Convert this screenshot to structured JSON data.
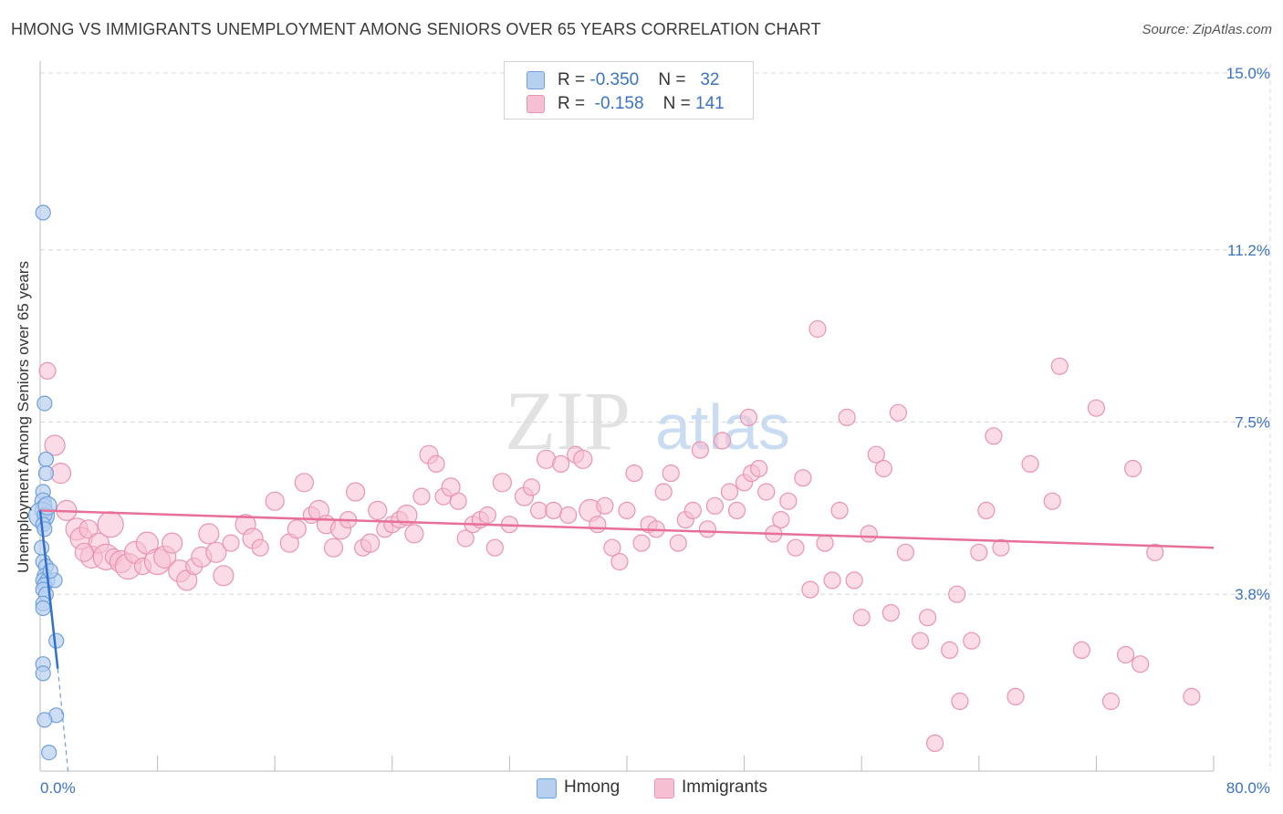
{
  "title": "HMONG VS IMMIGRANTS UNEMPLOYMENT AMONG SENIORS OVER 65 YEARS CORRELATION CHART",
  "source": "Source: ZipAtlas.com",
  "watermark": {
    "zip": "ZIP",
    "atlas": "atlas"
  },
  "legend_top": {
    "hmong": {
      "r_label": "R = ",
      "r_value": "-0.350",
      "n_label": "N = ",
      "n_value": "32"
    },
    "immigrants": {
      "r_label": "R = ",
      "r_value": "-0.158",
      "n_label": "N = ",
      "n_value": "141"
    }
  },
  "legend_bottom": {
    "hmong": "Hmong",
    "immigrants": "Immigrants"
  },
  "colors": {
    "hmong_fill": "#b8d0f0",
    "hmong_stroke": "#6f9fdc",
    "hmong_line": "#2f6fd0",
    "immigrants_fill": "#f7c0d2",
    "immigrants_stroke": "#ea93b2",
    "immigrants_line": "#e86f9a",
    "axis_label": "#3b73c4",
    "grid": "#d8d8d8"
  },
  "chart_data": {
    "type": "scatter",
    "title": "HMONG VS IMMIGRANTS UNEMPLOYMENT AMONG SENIORS OVER 65 YEARS CORRELATION CHART",
    "xlabel": "",
    "ylabel": "Unemployment Among Seniors over 65 years",
    "xlim": [
      0,
      80
    ],
    "ylim": [
      0,
      15
    ],
    "x_tick_labels": [
      "0.0%",
      "80.0%"
    ],
    "y_ticks": [
      3.8,
      7.5,
      11.2,
      15.0
    ],
    "y_tick_labels": [
      "3.8%",
      "7.5%",
      "11.2%",
      "15.0%"
    ],
    "series": [
      {
        "name": "Hmong",
        "R": -0.35,
        "N": 32,
        "trend": {
          "x0": 0.0,
          "y0": 5.6,
          "x1": 1.2,
          "y1": 2.2
        },
        "trend_dashed": {
          "x0": 1.2,
          "y0": 2.2,
          "x1": 1.9,
          "y1": 0.0
        },
        "points": [
          [
            0.2,
            12.0,
            8
          ],
          [
            0.3,
            7.9,
            8
          ],
          [
            0.4,
            6.7,
            8
          ],
          [
            0.4,
            6.4,
            8
          ],
          [
            0.2,
            6.0,
            8
          ],
          [
            0.2,
            5.8,
            9
          ],
          [
            0.3,
            5.7,
            8
          ],
          [
            0.2,
            5.6,
            9
          ],
          [
            0.1,
            5.5,
            14
          ],
          [
            0.3,
            5.5,
            8
          ],
          [
            0.2,
            5.3,
            8
          ],
          [
            0.3,
            5.2,
            8
          ],
          [
            0.2,
            4.5,
            8
          ],
          [
            0.4,
            4.4,
            8
          ],
          [
            0.3,
            4.2,
            8
          ],
          [
            0.2,
            4.1,
            8
          ],
          [
            0.5,
            4.1,
            8
          ],
          [
            0.3,
            4.0,
            8
          ],
          [
            0.2,
            3.9,
            8
          ],
          [
            0.4,
            3.8,
            8
          ],
          [
            1.0,
            4.1,
            8
          ],
          [
            0.2,
            3.6,
            8
          ],
          [
            0.2,
            3.5,
            8
          ],
          [
            1.1,
            2.8,
            8
          ],
          [
            0.2,
            2.3,
            8
          ],
          [
            0.2,
            2.1,
            8
          ],
          [
            1.1,
            1.2,
            8
          ],
          [
            0.3,
            1.1,
            8
          ],
          [
            0.6,
            0.4,
            8
          ],
          [
            0.5,
            5.7,
            10
          ],
          [
            0.7,
            4.3,
            8
          ],
          [
            0.1,
            4.8,
            8
          ]
        ]
      },
      {
        "name": "Immigrants",
        "R": -0.158,
        "N": 141,
        "trend": {
          "x0": 0.0,
          "y0": 5.6,
          "x1": 80.0,
          "y1": 4.8
        },
        "points": [
          [
            0.5,
            8.6,
            9
          ],
          [
            1.0,
            7.0,
            11
          ],
          [
            1.4,
            6.4,
            11
          ],
          [
            1.8,
            5.6,
            11
          ],
          [
            2.5,
            5.2,
            12
          ],
          [
            2.8,
            5.0,
            12
          ],
          [
            3.3,
            5.2,
            10
          ],
          [
            3.5,
            4.6,
            12
          ],
          [
            4.0,
            4.9,
            11
          ],
          [
            4.5,
            4.6,
            14
          ],
          [
            4.8,
            5.3,
            14
          ],
          [
            5.0,
            4.6,
            9
          ],
          [
            5.5,
            4.5,
            12
          ],
          [
            6.0,
            4.4,
            14
          ],
          [
            6.5,
            4.7,
            12
          ],
          [
            7.0,
            4.4,
            9
          ],
          [
            7.3,
            4.9,
            12
          ],
          [
            8.0,
            4.5,
            14
          ],
          [
            8.5,
            4.6,
            12
          ],
          [
            9.0,
            4.9,
            11
          ],
          [
            9.5,
            4.3,
            12
          ],
          [
            10.0,
            4.1,
            11
          ],
          [
            10.5,
            4.4,
            9
          ],
          [
            11.0,
            4.6,
            11
          ],
          [
            11.5,
            5.1,
            11
          ],
          [
            12.0,
            4.7,
            11
          ],
          [
            12.5,
            4.2,
            11
          ],
          [
            13.0,
            4.9,
            9
          ],
          [
            14.0,
            5.3,
            11
          ],
          [
            14.5,
            5.0,
            11
          ],
          [
            15.0,
            4.8,
            9
          ],
          [
            16.0,
            5.8,
            10
          ],
          [
            17.0,
            4.9,
            10
          ],
          [
            17.5,
            5.2,
            10
          ],
          [
            18.0,
            6.2,
            10
          ],
          [
            18.5,
            5.5,
            9
          ],
          [
            19.0,
            5.6,
            11
          ],
          [
            19.5,
            5.3,
            10
          ],
          [
            20.0,
            4.8,
            10
          ],
          [
            20.5,
            5.2,
            11
          ],
          [
            21.0,
            5.4,
            9
          ],
          [
            21.5,
            6.0,
            10
          ],
          [
            22.0,
            4.8,
            9
          ],
          [
            22.5,
            4.9,
            10
          ],
          [
            23.0,
            5.6,
            10
          ],
          [
            23.5,
            5.2,
            9
          ],
          [
            24.0,
            5.3,
            9
          ],
          [
            24.5,
            5.4,
            9
          ],
          [
            25.0,
            5.5,
            11
          ],
          [
            25.5,
            5.1,
            10
          ],
          [
            26.0,
            5.9,
            9
          ],
          [
            26.5,
            6.8,
            10
          ],
          [
            27.0,
            6.6,
            9
          ],
          [
            27.5,
            5.9,
            9
          ],
          [
            28.0,
            6.1,
            10
          ],
          [
            28.5,
            5.8,
            9
          ],
          [
            29.0,
            5.0,
            9
          ],
          [
            29.5,
            5.3,
            9
          ],
          [
            30.0,
            5.4,
            9
          ],
          [
            30.5,
            5.5,
            9
          ],
          [
            31.0,
            4.8,
            9
          ],
          [
            31.5,
            6.2,
            10
          ],
          [
            32.0,
            5.3,
            9
          ],
          [
            33.0,
            5.9,
            10
          ],
          [
            33.5,
            6.1,
            9
          ],
          [
            34.0,
            5.6,
            9
          ],
          [
            34.5,
            6.7,
            10
          ],
          [
            35.0,
            5.6,
            9
          ],
          [
            35.5,
            6.6,
            9
          ],
          [
            36.0,
            5.5,
            9
          ],
          [
            36.5,
            6.8,
            9
          ],
          [
            37.0,
            6.7,
            10
          ],
          [
            37.5,
            5.6,
            12
          ],
          [
            38.0,
            5.3,
            9
          ],
          [
            38.5,
            5.7,
            9
          ],
          [
            39.0,
            4.8,
            9
          ],
          [
            39.5,
            4.5,
            9
          ],
          [
            40.0,
            5.6,
            9
          ],
          [
            40.5,
            6.4,
            9
          ],
          [
            41.0,
            4.9,
            9
          ],
          [
            41.5,
            5.3,
            9
          ],
          [
            42.0,
            5.2,
            9
          ],
          [
            42.5,
            6.0,
            9
          ],
          [
            43.0,
            6.4,
            9
          ],
          [
            43.5,
            4.9,
            9
          ],
          [
            44.0,
            5.4,
            9
          ],
          [
            44.5,
            5.6,
            9
          ],
          [
            45.0,
            6.9,
            9
          ],
          [
            45.5,
            5.2,
            9
          ],
          [
            46.0,
            5.7,
            9
          ],
          [
            46.5,
            7.1,
            9
          ],
          [
            47.0,
            6.0,
            9
          ],
          [
            47.5,
            5.6,
            9
          ],
          [
            48.0,
            6.2,
            9
          ],
          [
            48.5,
            6.4,
            9
          ],
          [
            48.3,
            7.6,
            9
          ],
          [
            49.0,
            6.5,
            9
          ],
          [
            49.5,
            6.0,
            9
          ],
          [
            50.0,
            5.1,
            9
          ],
          [
            50.5,
            5.4,
            9
          ],
          [
            51.0,
            5.8,
            9
          ],
          [
            51.5,
            4.8,
            9
          ],
          [
            52.0,
            6.3,
            9
          ],
          [
            52.5,
            3.9,
            9
          ],
          [
            53.0,
            9.5,
            9
          ],
          [
            53.5,
            4.9,
            9
          ],
          [
            54.0,
            4.1,
            9
          ],
          [
            54.5,
            5.6,
            9
          ],
          [
            55.0,
            7.6,
            9
          ],
          [
            55.5,
            4.1,
            9
          ],
          [
            56.0,
            3.3,
            9
          ],
          [
            56.5,
            5.1,
            9
          ],
          [
            57.0,
            6.8,
            9
          ],
          [
            57.5,
            6.5,
            9
          ],
          [
            58.0,
            3.4,
            9
          ],
          [
            58.5,
            7.7,
            9
          ],
          [
            59.0,
            4.7,
            9
          ],
          [
            60.0,
            2.8,
            9
          ],
          [
            60.5,
            3.3,
            9
          ],
          [
            61.0,
            0.6,
            9
          ],
          [
            62.0,
            2.6,
            9
          ],
          [
            62.5,
            3.8,
            9
          ],
          [
            62.7,
            1.5,
            9
          ],
          [
            63.5,
            2.8,
            9
          ],
          [
            64.0,
            4.7,
            9
          ],
          [
            64.5,
            5.6,
            9
          ],
          [
            65.0,
            7.2,
            9
          ],
          [
            65.5,
            4.8,
            9
          ],
          [
            66.5,
            1.6,
            9
          ],
          [
            67.5,
            6.6,
            9
          ],
          [
            69.0,
            5.8,
            9
          ],
          [
            69.5,
            8.7,
            9
          ],
          [
            71.0,
            2.6,
            9
          ],
          [
            72.0,
            7.8,
            9
          ],
          [
            73.0,
            1.5,
            9
          ],
          [
            74.0,
            2.5,
            9
          ],
          [
            74.5,
            6.5,
            9
          ],
          [
            75.0,
            2.3,
            9
          ],
          [
            76.0,
            4.7,
            9
          ],
          [
            78.5,
            1.6,
            9
          ],
          [
            3.0,
            4.7,
            10
          ]
        ]
      }
    ]
  }
}
